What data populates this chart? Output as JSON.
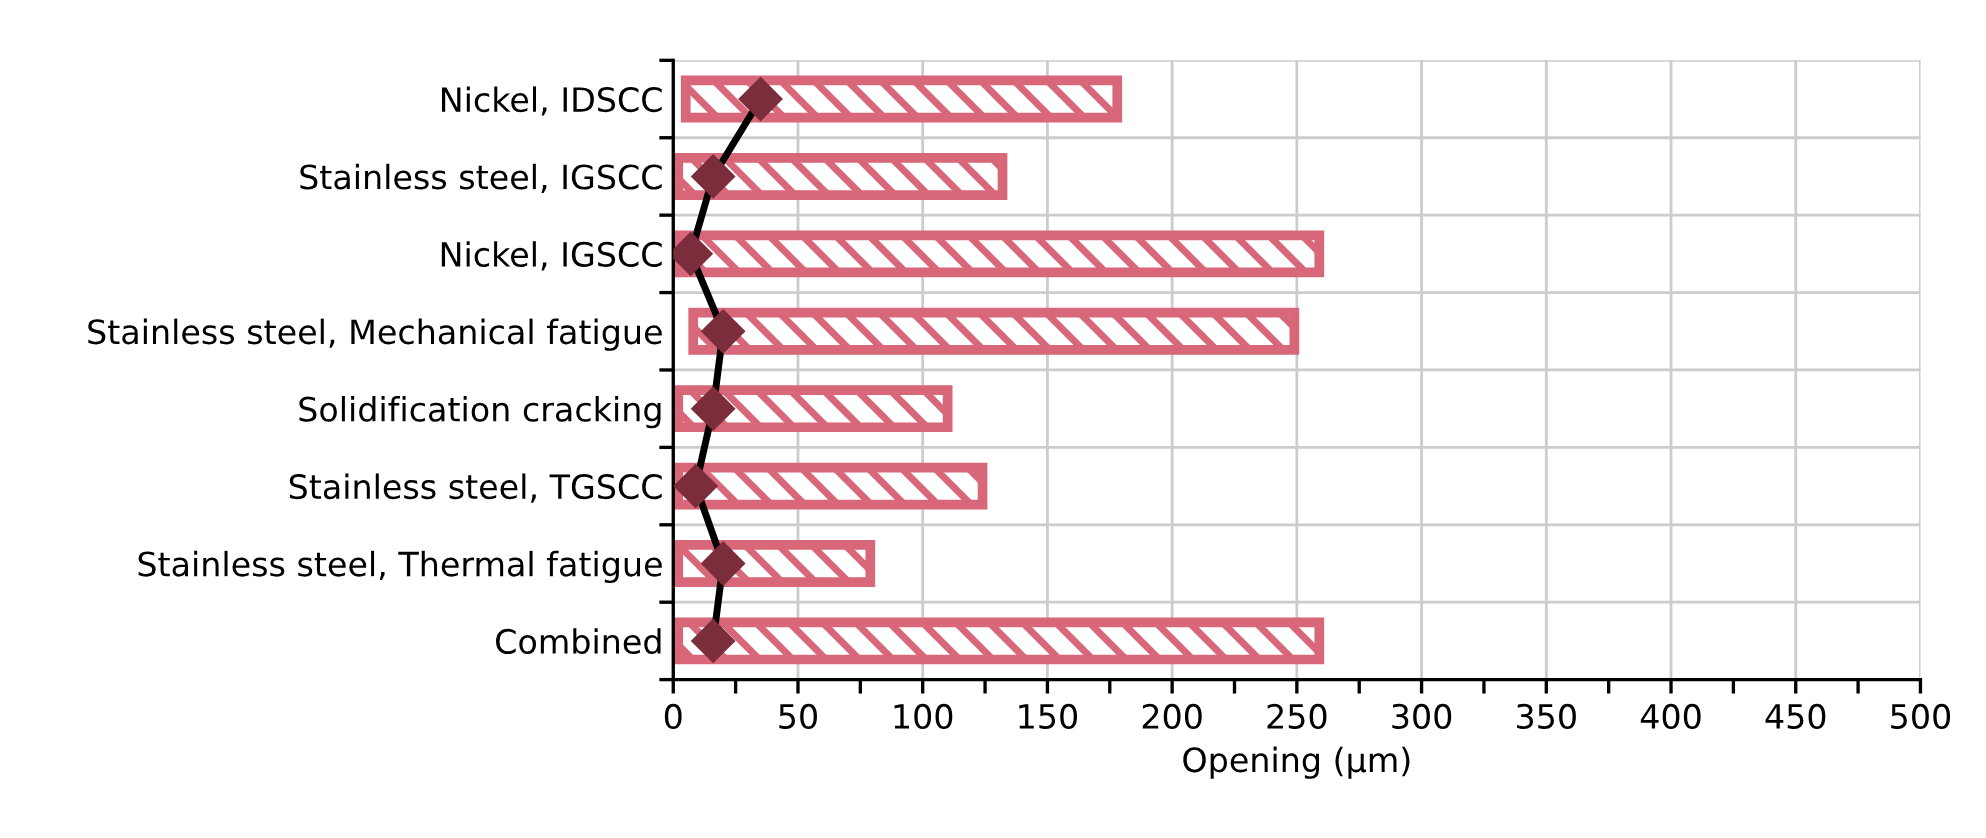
{
  "chart_data": {
    "type": "bar",
    "orientation": "horizontal",
    "xlabel": "Opening (µm)",
    "categories": [
      "Nickel, IDSCC",
      "Stainless steel, IGSCC",
      "Nickel, IGSCC",
      "Stainless steel, Mechanical fatigue",
      "Solidification cracking",
      "Stainless steel, TGSCC",
      "Stainless steel, Thermal fatigue",
      "Combined"
    ],
    "series": [
      {
        "color": "#d9677a",
        "base": [
          5,
          2,
          2,
          8,
          2,
          2,
          2,
          2
        ],
        "values": [
          173,
          130,
          257,
          241,
          108,
          122,
          77,
          257
        ]
      },
      {
        "type": "line",
        "color": "#000000",
        "colors": [
          "#7b2d3b",
          "#7b2d3b",
          "#7b2d3b",
          "#7b2d3b",
          "#7b2d3b",
          "#7b2d3b",
          "#7b2d3b",
          "#7b2d3b"
        ],
        "marker": "diamond",
        "values": [
          35,
          16,
          7,
          20,
          16,
          9,
          20,
          16
        ]
      }
    ],
    "xlim": [
      0,
      500
    ],
    "xticks": [
      0,
      {
        "value": 25,
        "label": null
      },
      50,
      {
        "value": 75,
        "label": null
      },
      100,
      {
        "value": 125,
        "label": null
      },
      150,
      {
        "value": 175,
        "label": null
      },
      200,
      {
        "value": 225,
        "label": null
      },
      250,
      {
        "value": 275,
        "label": null
      },
      300,
      {
        "value": 325,
        "label": null
      },
      350,
      {
        "value": 375,
        "label": null
      },
      400,
      {
        "value": 425,
        "label": null
      },
      450,
      {
        "value": 475,
        "label": null
      },
      500
    ],
    "grid": true,
    "legend": false
  }
}
